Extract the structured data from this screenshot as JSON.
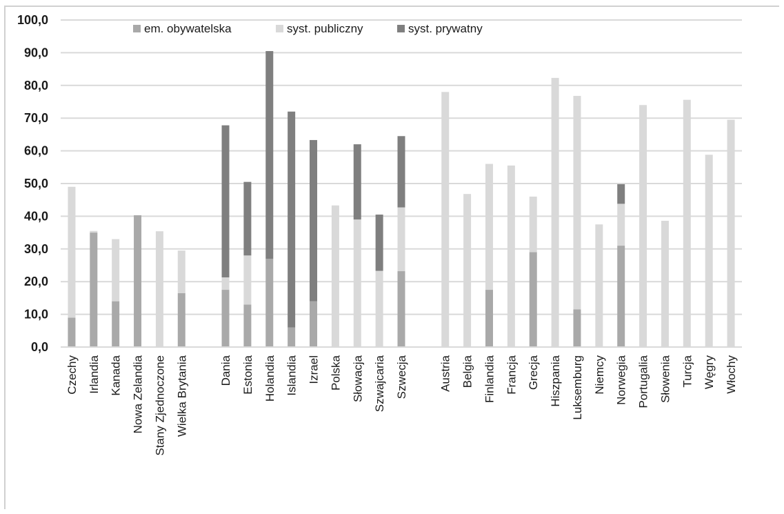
{
  "chart_data": {
    "type": "bar",
    "stacked": true,
    "ylim": [
      0,
      100
    ],
    "yticks": [
      "0,0",
      "10,0",
      "20,0",
      "30,0",
      "40,0",
      "50,0",
      "60,0",
      "70,0",
      "80,0",
      "90,0",
      "100,0"
    ],
    "grid": true,
    "legend_position": "top",
    "colors": {
      "em_obywatelska": "#a9a9a9",
      "syst_publiczny": "#d9d9d9",
      "syst_prywatny": "#7f7f7f",
      "grid": "#d9d9d9",
      "axis": "#1a1a1a"
    },
    "series": [
      {
        "name": "em. obywatelska",
        "key": "em_obywatelska"
      },
      {
        "name": "syst. publiczny",
        "key": "syst_publiczny"
      },
      {
        "name": "syst. prywatny",
        "key": "syst_prywatny"
      }
    ],
    "groups": [
      {
        "categories": [
          {
            "label": "Czechy",
            "values": [
              9.0,
              40.0,
              0
            ]
          },
          {
            "label": "Irlandia",
            "values": [
              35.0,
              0.5,
              0
            ]
          },
          {
            "label": "Kanada",
            "values": [
              14.0,
              19.0,
              0
            ]
          },
          {
            "label": "Nowa Zelandia",
            "values": [
              40.3,
              0,
              0
            ]
          },
          {
            "label": "Stany Zjednoczone",
            "values": [
              0,
              35.4,
              0
            ]
          },
          {
            "label": "Wielka Brytania",
            "values": [
              16.5,
              13.0,
              0
            ]
          }
        ]
      },
      {
        "categories": [
          {
            "label": "Dania",
            "values": [
              17.5,
              3.8,
              46.5
            ]
          },
          {
            "label": "Estonia",
            "values": [
              13.0,
              15.0,
              22.5
            ]
          },
          {
            "label": "Holandia",
            "values": [
              27.0,
              0,
              63.5
            ]
          },
          {
            "label": "Islandia",
            "values": [
              6.0,
              0,
              66.0
            ]
          },
          {
            "label": "Izrael",
            "values": [
              14.0,
              0,
              49.3
            ]
          },
          {
            "label": "Polska",
            "values": [
              0,
              43.3,
              0
            ]
          },
          {
            "label": "Słowacja",
            "values": [
              0,
              39.0,
              23.0
            ]
          },
          {
            "label": "Szwajcaria",
            "values": [
              0,
              23.3,
              17.2
            ]
          },
          {
            "label": "Szwecja",
            "values": [
              23.2,
              19.5,
              21.8
            ]
          }
        ]
      },
      {
        "categories": [
          {
            "label": "Austria",
            "values": [
              0,
              78.0,
              0
            ]
          },
          {
            "label": "Belgia",
            "values": [
              0,
              46.8,
              0
            ]
          },
          {
            "label": "Finlandia",
            "values": [
              17.5,
              38.5,
              0
            ]
          },
          {
            "label": "Francja",
            "values": [
              0,
              55.5,
              0
            ]
          },
          {
            "label": "Grecja",
            "values": [
              29.0,
              17.0,
              0
            ]
          },
          {
            "label": "Hiszpania",
            "values": [
              0,
              82.3,
              0
            ]
          },
          {
            "label": "Luksemburg",
            "values": [
              11.5,
              65.3,
              0
            ]
          },
          {
            "label": "Niemcy",
            "values": [
              0,
              37.5,
              0
            ]
          },
          {
            "label": "Norwegia",
            "values": [
              31.0,
              12.8,
              6.0
            ]
          },
          {
            "label": "Portugalia",
            "values": [
              0,
              74.0,
              0
            ]
          },
          {
            "label": "Słowenia",
            "values": [
              0,
              38.6,
              0
            ]
          },
          {
            "label": "Turcja",
            "values": [
              0,
              75.6,
              0
            ]
          },
          {
            "label": "Węgry",
            "values": [
              0,
              58.8,
              0
            ]
          },
          {
            "label": "Włochy",
            "values": [
              0,
              69.5,
              0
            ]
          }
        ]
      }
    ]
  }
}
